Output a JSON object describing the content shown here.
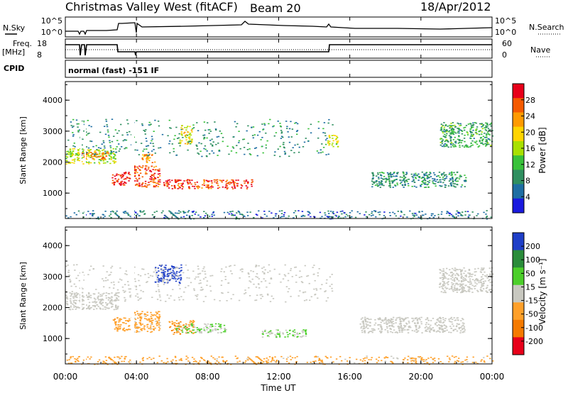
{
  "header": {
    "station": "Christmas Valley West (fitACF)",
    "beam": "Beam 20",
    "date": "18/Apr/2012"
  },
  "strip_labels": {
    "nsky": "N.Sky",
    "nsky_ticks": [
      "10^5",
      "10^0"
    ],
    "nsearch": "N.Search",
    "nsearch_ticks": [
      "10^5",
      "10^0"
    ],
    "freq": "Freq.",
    "freq_unit": "[MHz]",
    "freq_ticks": [
      "18",
      "8"
    ],
    "nave": "Nave",
    "nave_ticks": [
      "60",
      "0"
    ],
    "cpid": "CPID",
    "cpid_value": "normal (fast) -151 IF"
  },
  "panels": {
    "ylabel": "Slant Range [km]",
    "yticks": [
      "4000",
      "3000",
      "2000",
      "1000"
    ],
    "xlabel": "Time UT",
    "xticks": [
      "00:00",
      "04:00",
      "08:00",
      "12:00",
      "16:00",
      "20:00",
      "00:00"
    ]
  },
  "power_scale": {
    "label": "Power [dB]",
    "ticks": [
      "28",
      "24",
      "20",
      "16",
      "12",
      "8",
      "4"
    ],
    "colors": [
      "#e8001a",
      "#f55a00",
      "#ff9a00",
      "#ffd400",
      "#a8e000",
      "#39c23a",
      "#2f8f60",
      "#1e6ea3",
      "#1a1adf"
    ]
  },
  "velocity_scale": {
    "label": "Velocity [m s⁻¹]",
    "ticks": [
      "200",
      "100",
      "50",
      "15",
      "-15",
      "-50",
      "-100",
      "-200"
    ],
    "colors": [
      "#1f3fc8",
      "#2a8c3a",
      "#4ccf2a",
      "#c8c8c0",
      "#ffa02a",
      "#f57a00",
      "#e8001a"
    ]
  },
  "chart_data": [
    {
      "type": "heatmap",
      "title": "Christmas Valley West (fitACF) Beam 20 18/Apr/2012",
      "xlabel": "Time UT",
      "ylabel": "Slant Range [km]",
      "xlim": [
        0,
        24
      ],
      "ylim": [
        180,
        4600
      ],
      "colorbar": "Power [dB]",
      "clim": [
        0,
        30
      ],
      "regions": [
        {
          "t": [
            0.0,
            2.8
          ],
          "range": [
            1950,
            2450
          ],
          "value": 16
        },
        {
          "t": [
            0.9,
            2.4
          ],
          "range": [
            2100,
            2350
          ],
          "value": 24
        },
        {
          "t": [
            2.6,
            3.6
          ],
          "range": [
            1250,
            1700
          ],
          "value": 28
        },
        {
          "t": [
            3.7,
            5.3
          ],
          "range": [
            1200,
            1900
          ],
          "value": 26
        },
        {
          "t": [
            4.2,
            5.0
          ],
          "range": [
            2000,
            2300
          ],
          "value": 22
        },
        {
          "t": [
            5.5,
            10.5
          ],
          "range": [
            1150,
            1450
          ],
          "value": 26
        },
        {
          "t": [
            6.4,
            7.1
          ],
          "range": [
            2600,
            3200
          ],
          "value": 18
        },
        {
          "t": [
            0.0,
            15.0
          ],
          "range": [
            2200,
            3400
          ],
          "value": 8
        },
        {
          "t": [
            14.7,
            15.3
          ],
          "range": [
            2500,
            2900
          ],
          "value": 16
        },
        {
          "t": [
            17.2,
            22.5
          ],
          "range": [
            1200,
            1700
          ],
          "value": 8
        },
        {
          "t": [
            21.0,
            24.0
          ],
          "range": [
            2500,
            3300
          ],
          "value": 10
        },
        {
          "t": [
            0.0,
            24.0
          ],
          "range": [
            180,
            450
          ],
          "value": 6
        }
      ]
    },
    {
      "type": "heatmap",
      "xlabel": "Time UT",
      "ylabel": "Slant Range [km]",
      "xlim": [
        0,
        24
      ],
      "ylim": [
        180,
        4600
      ],
      "colorbar": "Velocity [m s⁻¹]",
      "clim": [
        -250,
        250
      ],
      "regions": [
        {
          "t": [
            0.0,
            3.0
          ],
          "range": [
            1950,
            2500
          ],
          "value": 0
        },
        {
          "t": [
            2.6,
            3.6
          ],
          "range": [
            1250,
            1700
          ],
          "value": -80
        },
        {
          "t": [
            3.7,
            5.3
          ],
          "range": [
            1200,
            1900
          ],
          "value": -60
        },
        {
          "t": [
            5.8,
            7.2
          ],
          "range": [
            1150,
            1600
          ],
          "value": -90
        },
        {
          "t": [
            6.2,
            9.0
          ],
          "range": [
            1200,
            1500
          ],
          "value": 40
        },
        {
          "t": [
            5.0,
            6.5
          ],
          "range": [
            2800,
            3400
          ],
          "value": 220
        },
        {
          "t": [
            11.0,
            13.5
          ],
          "range": [
            1050,
            1300
          ],
          "value": 40
        },
        {
          "t": [
            0.0,
            15.0
          ],
          "range": [
            2200,
            3400
          ],
          "value": 0
        },
        {
          "t": [
            16.5,
            22.5
          ],
          "range": [
            1200,
            1700
          ],
          "value": 0
        },
        {
          "t": [
            21.0,
            24.0
          ],
          "range": [
            2500,
            3300
          ],
          "value": 0
        },
        {
          "t": [
            0.0,
            24.0
          ],
          "range": [
            180,
            450
          ],
          "value": -60
        }
      ]
    }
  ]
}
